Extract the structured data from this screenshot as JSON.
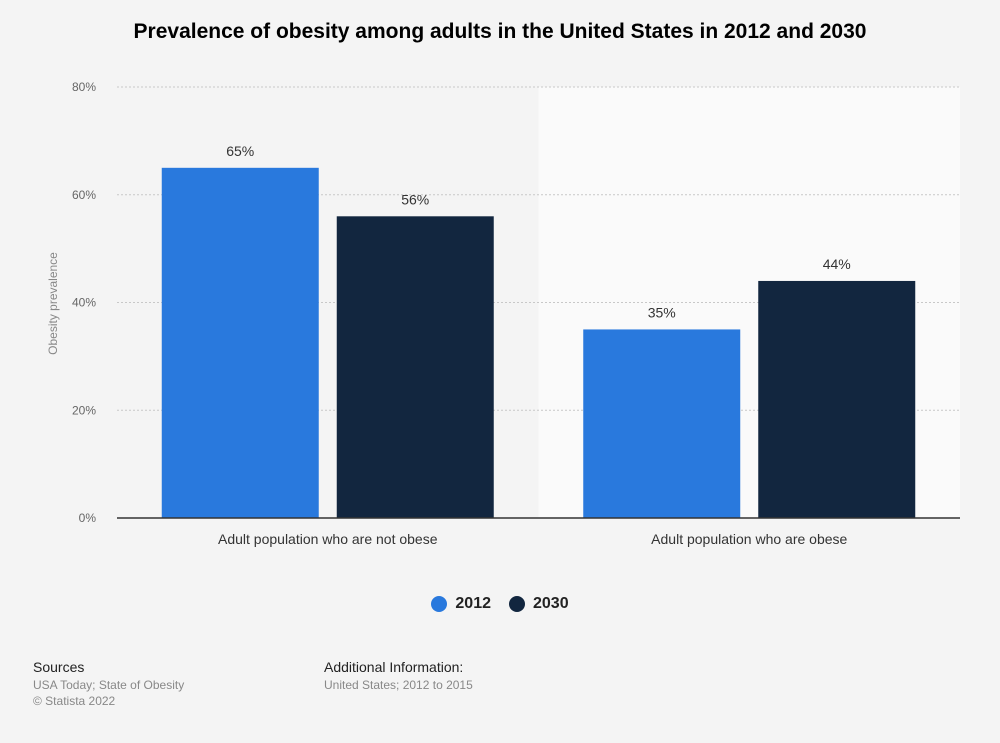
{
  "page": {
    "title": "Prevalence of obesity among adults in the United States in 2012 and 2030"
  },
  "chart_data": {
    "type": "bar",
    "title": "Prevalence of obesity among adults in the United States in 2012 and 2030",
    "ylabel": "Obesity prevalence",
    "xlabel": "",
    "ylim": [
      0,
      80
    ],
    "yticks": [
      0,
      20,
      40,
      60,
      80
    ],
    "ytick_labels": [
      "0%",
      "20%",
      "40%",
      "60%",
      "80%"
    ],
    "grid": true,
    "categories": [
      "Adult population who are not obese",
      "Adult population who are obese"
    ],
    "series": [
      {
        "name": "2012",
        "values": [
          65,
          35
        ],
        "labels": [
          "65%",
          "35%"
        ],
        "color": "#2979dd"
      },
      {
        "name": "2030",
        "values": [
          56,
          44
        ],
        "labels": [
          "56%",
          "44%"
        ],
        "color": "#12263f"
      }
    ],
    "legend_position": "bottom-center"
  },
  "legend": {
    "items": [
      {
        "label": "2012",
        "color": "#2979dd"
      },
      {
        "label": "2030",
        "color": "#12263f"
      }
    ]
  },
  "footer": {
    "sources_heading": "Sources",
    "sources_line1": "USA Today; State of Obesity",
    "sources_line2": "© Statista 2022",
    "additional_heading": "Additional Information:",
    "additional_line1": "United States; 2012 to 2015"
  }
}
